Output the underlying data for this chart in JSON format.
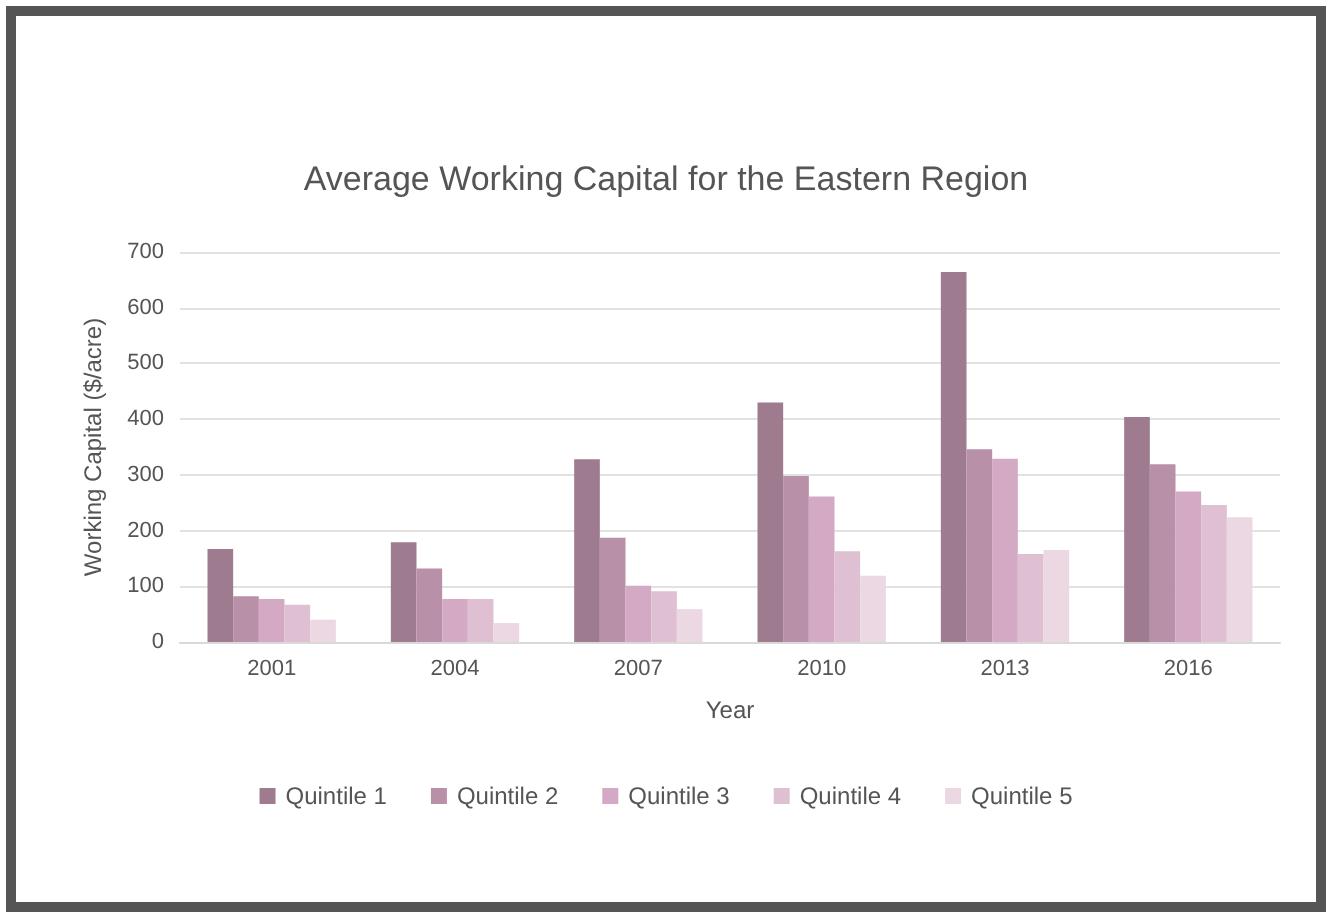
{
  "chart_data": {
    "type": "bar",
    "title": "Average Working Capital for the Eastern Region",
    "xlabel": "Year",
    "ylabel": "Working Capital ($/acre)",
    "categories": [
      "2001",
      "2004",
      "2007",
      "2010",
      "2013",
      "2016"
    ],
    "series": [
      {
        "name": "Quintile 1",
        "color": "#9e7b8f",
        "values": [
          167,
          179,
          328,
          430,
          664,
          404
        ]
      },
      {
        "name": "Quintile 2",
        "color": "#b890a8",
        "values": [
          82,
          132,
          187,
          298,
          346,
          319
        ]
      },
      {
        "name": "Quintile 3",
        "color": "#d4a9c4",
        "values": [
          77,
          77,
          101,
          261,
          329,
          270
        ]
      },
      {
        "name": "Quintile 4",
        "color": "#dfc0d2",
        "values": [
          67,
          77,
          91,
          163,
          158,
          246
        ]
      },
      {
        "name": "Quintile 5",
        "color": "#ecd8e2",
        "values": [
          40,
          34,
          59,
          119,
          165,
          224
        ]
      }
    ],
    "ylim": [
      0,
      700
    ],
    "yticks": [
      0,
      100,
      200,
      300,
      400,
      500,
      600,
      700
    ],
    "grid": "y",
    "legend": "bottom"
  }
}
